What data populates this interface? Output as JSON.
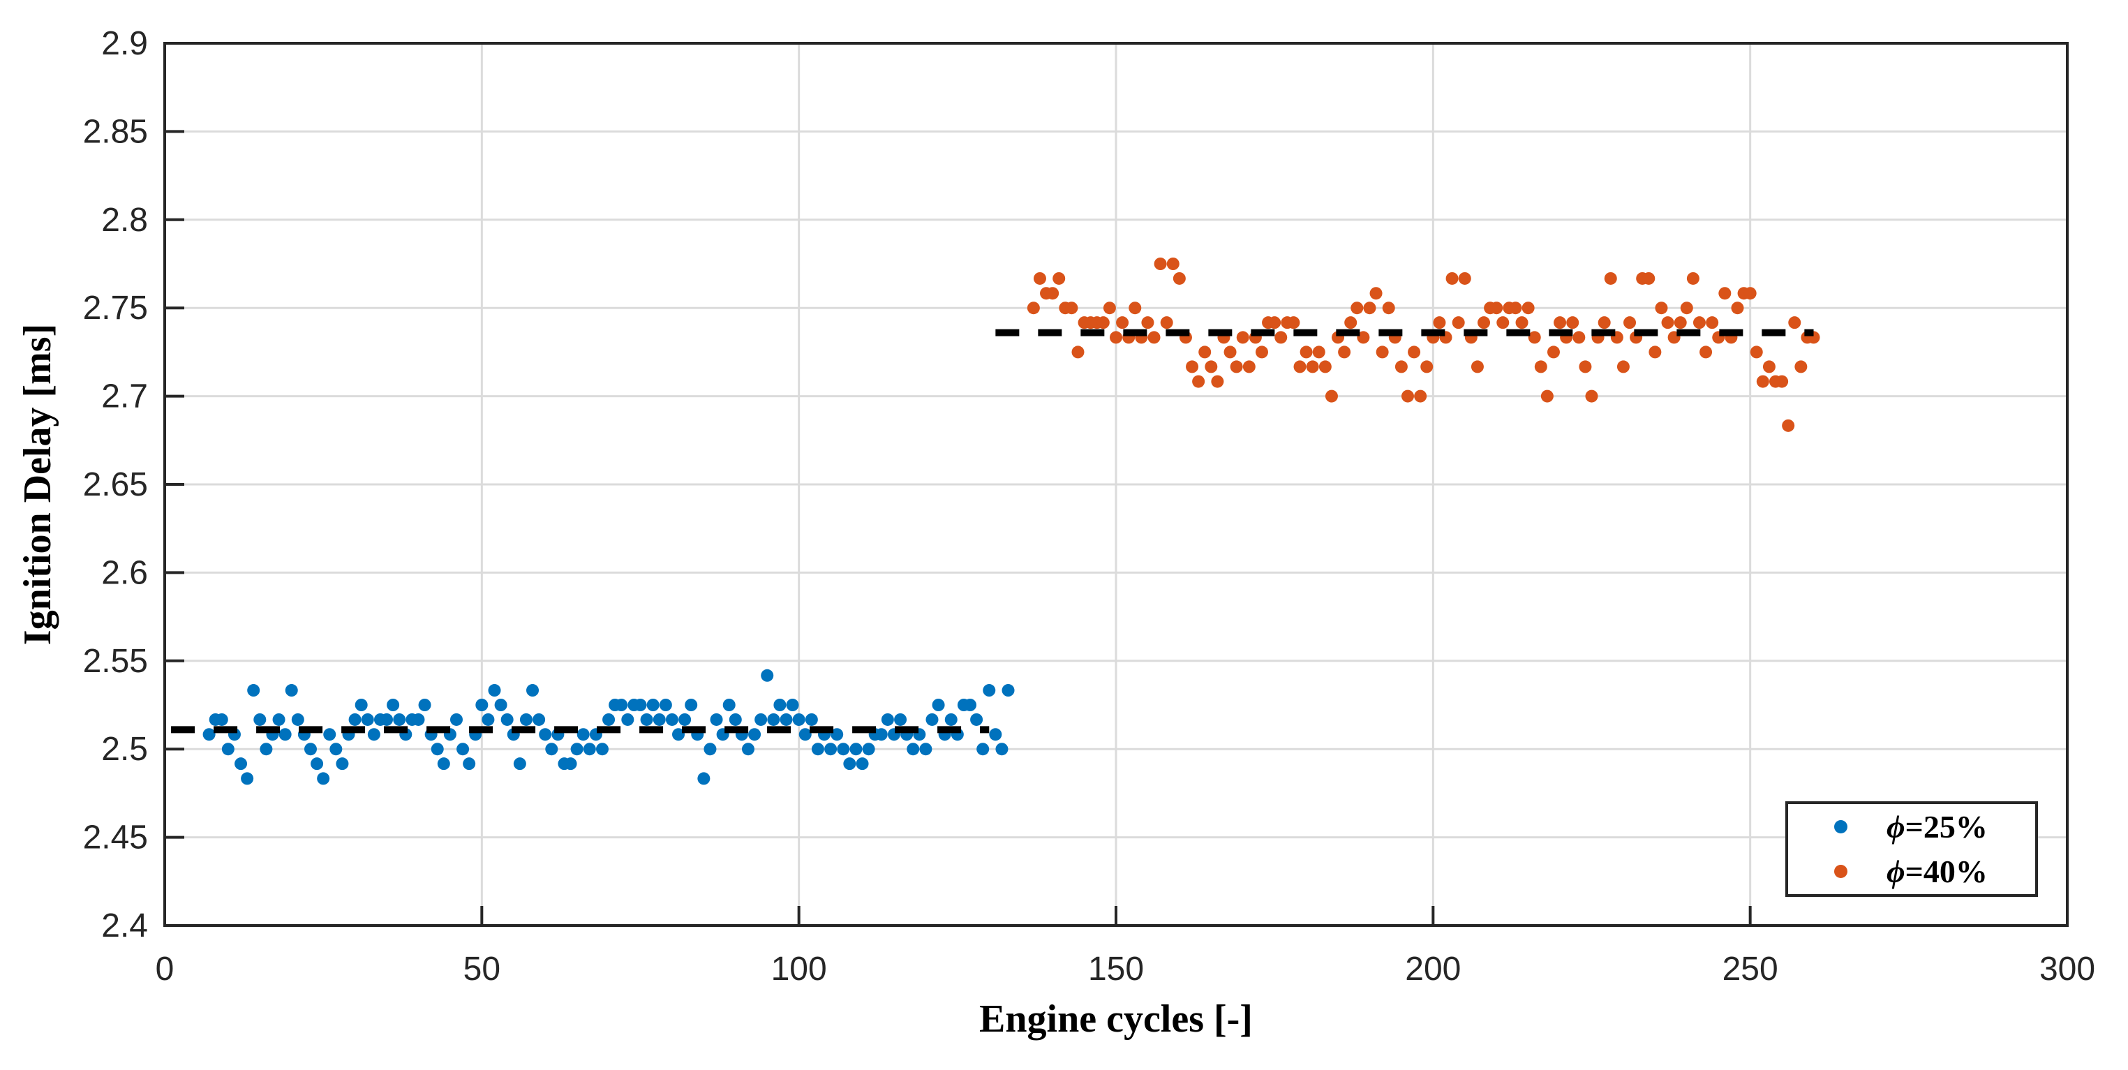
{
  "figure": {
    "background": "#FFFFFF",
    "axis_color": "#262626",
    "grid_color": "#DBDBDB",
    "mean_line_color": "#000000"
  },
  "chart_data": {
    "type": "scatter",
    "title": "",
    "xlabel": "Engine cycles [-]",
    "ylabel": "Ignition Delay [ms]",
    "xlim": [
      0,
      300
    ],
    "ylim": [
      2.4,
      2.9
    ],
    "grid": true,
    "x_ticks": [
      0,
      50,
      100,
      150,
      200,
      250,
      300
    ],
    "x_tick_labels": [
      "0",
      "50",
      "100",
      "150",
      "200",
      "250",
      "300"
    ],
    "y_ticks": [
      2.4,
      2.45,
      2.5,
      2.55,
      2.6,
      2.65,
      2.7,
      2.75,
      2.8,
      2.85,
      2.9
    ],
    "y_tick_labels": [
      "2.4",
      "2.45",
      "2.5",
      "2.55",
      "2.6",
      "2.65",
      "2.7",
      "2.75",
      "2.8",
      "2.85",
      "2.9"
    ],
    "legend": {
      "position": "south-east",
      "entries": [
        {
          "label": "ϕ=25%",
          "symbol": "ϕ",
          "suffix": "=25%",
          "color": "#0072BD"
        },
        {
          "label": "ϕ=40%",
          "symbol": "ϕ",
          "suffix": "=40%",
          "color": "#D95319"
        }
      ]
    },
    "mean_lines": [
      {
        "series": "phi-25",
        "value": 2.511,
        "x_start": 1,
        "x_end": 130,
        "style": "dashed",
        "color": "#000000"
      },
      {
        "series": "phi-40",
        "value": 2.736,
        "x_start": 131,
        "x_end": 260,
        "style": "dashed",
        "color": "#000000"
      }
    ],
    "series": [
      {
        "name": "phi-25",
        "color": "#0072BD",
        "marker": "circle",
        "points": [
          [
            7,
            2.5083
          ],
          [
            8,
            2.5167
          ],
          [
            9,
            2.5167
          ],
          [
            10,
            2.5
          ],
          [
            11,
            2.5083
          ],
          [
            12,
            2.4917
          ],
          [
            13,
            2.4833
          ],
          [
            14,
            2.5333
          ],
          [
            15,
            2.5167
          ],
          [
            16,
            2.5
          ],
          [
            17,
            2.5083
          ],
          [
            18,
            2.5167
          ],
          [
            19,
            2.5083
          ],
          [
            20,
            2.5333
          ],
          [
            21,
            2.5167
          ],
          [
            22,
            2.5083
          ],
          [
            23,
            2.5
          ],
          [
            24,
            2.4917
          ],
          [
            25,
            2.4833
          ],
          [
            26,
            2.5083
          ],
          [
            27,
            2.5
          ],
          [
            28,
            2.4917
          ],
          [
            29,
            2.5083
          ],
          [
            30,
            2.5167
          ],
          [
            31,
            2.525
          ],
          [
            32,
            2.5167
          ],
          [
            33,
            2.5083
          ],
          [
            34,
            2.5167
          ],
          [
            35,
            2.5167
          ],
          [
            36,
            2.525
          ],
          [
            37,
            2.5167
          ],
          [
            38,
            2.5083
          ],
          [
            39,
            2.5167
          ],
          [
            40,
            2.5167
          ],
          [
            41,
            2.525
          ],
          [
            42,
            2.5083
          ],
          [
            43,
            2.5
          ],
          [
            44,
            2.4917
          ],
          [
            45,
            2.5083
          ],
          [
            46,
            2.5167
          ],
          [
            47,
            2.5
          ],
          [
            48,
            2.4917
          ],
          [
            49,
            2.5083
          ],
          [
            50,
            2.525
          ],
          [
            51,
            2.5167
          ],
          [
            52,
            2.5333
          ],
          [
            53,
            2.525
          ],
          [
            54,
            2.5167
          ],
          [
            55,
            2.5083
          ],
          [
            56,
            2.4917
          ],
          [
            57,
            2.5167
          ],
          [
            58,
            2.5333
          ],
          [
            59,
            2.5167
          ],
          [
            60,
            2.5083
          ],
          [
            61,
            2.5
          ],
          [
            62,
            2.5083
          ],
          [
            63,
            2.4917
          ],
          [
            64,
            2.4917
          ],
          [
            65,
            2.5
          ],
          [
            66,
            2.5083
          ],
          [
            67,
            2.5
          ],
          [
            68,
            2.5083
          ],
          [
            69,
            2.5
          ],
          [
            70,
            2.5167
          ],
          [
            71,
            2.525
          ],
          [
            72,
            2.525
          ],
          [
            73,
            2.5167
          ],
          [
            74,
            2.525
          ],
          [
            75,
            2.525
          ],
          [
            76,
            2.5167
          ],
          [
            77,
            2.525
          ],
          [
            78,
            2.5167
          ],
          [
            79,
            2.525
          ],
          [
            80,
            2.5167
          ],
          [
            81,
            2.5083
          ],
          [
            82,
            2.5167
          ],
          [
            83,
            2.525
          ],
          [
            84,
            2.5083
          ],
          [
            85,
            2.4833
          ],
          [
            86,
            2.5
          ],
          [
            87,
            2.5167
          ],
          [
            88,
            2.5083
          ],
          [
            89,
            2.525
          ],
          [
            90,
            2.5167
          ],
          [
            91,
            2.5083
          ],
          [
            92,
            2.5
          ],
          [
            93,
            2.5083
          ],
          [
            94,
            2.5167
          ],
          [
            95,
            2.5417
          ],
          [
            96,
            2.5167
          ],
          [
            97,
            2.525
          ],
          [
            98,
            2.5167
          ],
          [
            99,
            2.525
          ],
          [
            100,
            2.5167
          ],
          [
            101,
            2.5083
          ],
          [
            102,
            2.5167
          ],
          [
            103,
            2.5
          ],
          [
            104,
            2.5083
          ],
          [
            105,
            2.5
          ],
          [
            106,
            2.5083
          ],
          [
            107,
            2.5
          ],
          [
            108,
            2.4917
          ],
          [
            109,
            2.5
          ],
          [
            110,
            2.4917
          ],
          [
            111,
            2.5
          ],
          [
            112,
            2.5083
          ],
          [
            113,
            2.5083
          ],
          [
            114,
            2.5167
          ],
          [
            115,
            2.5083
          ],
          [
            116,
            2.5167
          ],
          [
            117,
            2.5083
          ],
          [
            118,
            2.5
          ],
          [
            119,
            2.5083
          ],
          [
            120,
            2.5
          ],
          [
            121,
            2.5167
          ],
          [
            122,
            2.525
          ],
          [
            123,
            2.5083
          ],
          [
            124,
            2.5167
          ],
          [
            125,
            2.5083
          ],
          [
            126,
            2.525
          ],
          [
            127,
            2.525
          ],
          [
            128,
            2.5167
          ],
          [
            129,
            2.5
          ],
          [
            130,
            2.5333
          ],
          [
            131,
            2.5083
          ],
          [
            132,
            2.5
          ],
          [
            133,
            2.5333
          ]
        ]
      },
      {
        "name": "phi-40",
        "color": "#D95319",
        "marker": "circle",
        "points": [
          [
            137,
            2.75
          ],
          [
            138,
            2.7667
          ],
          [
            139,
            2.7583
          ],
          [
            140,
            2.7583
          ],
          [
            141,
            2.7667
          ],
          [
            142,
            2.75
          ],
          [
            143,
            2.75
          ],
          [
            144,
            2.725
          ],
          [
            145,
            2.7417
          ],
          [
            146,
            2.7417
          ],
          [
            147,
            2.7417
          ],
          [
            148,
            2.7417
          ],
          [
            149,
            2.75
          ],
          [
            150,
            2.7333
          ],
          [
            151,
            2.7417
          ],
          [
            152,
            2.7333
          ],
          [
            153,
            2.75
          ],
          [
            154,
            2.7333
          ],
          [
            155,
            2.7417
          ],
          [
            156,
            2.7333
          ],
          [
            157,
            2.775
          ],
          [
            158,
            2.7417
          ],
          [
            159,
            2.775
          ],
          [
            160,
            2.7667
          ],
          [
            161,
            2.7333
          ],
          [
            162,
            2.7167
          ],
          [
            163,
            2.7083
          ],
          [
            164,
            2.725
          ],
          [
            165,
            2.7167
          ],
          [
            166,
            2.7083
          ],
          [
            167,
            2.7333
          ],
          [
            168,
            2.725
          ],
          [
            169,
            2.7167
          ],
          [
            170,
            2.7333
          ],
          [
            171,
            2.7167
          ],
          [
            172,
            2.7333
          ],
          [
            173,
            2.725
          ],
          [
            174,
            2.7417
          ],
          [
            175,
            2.7417
          ],
          [
            176,
            2.7333
          ],
          [
            177,
            2.7417
          ],
          [
            178,
            2.7417
          ],
          [
            179,
            2.7167
          ],
          [
            180,
            2.725
          ],
          [
            181,
            2.7167
          ],
          [
            182,
            2.725
          ],
          [
            183,
            2.7167
          ],
          [
            184,
            2.7
          ],
          [
            185,
            2.7333
          ],
          [
            186,
            2.725
          ],
          [
            187,
            2.7417
          ],
          [
            188,
            2.75
          ],
          [
            189,
            2.7333
          ],
          [
            190,
            2.75
          ],
          [
            191,
            2.7583
          ],
          [
            192,
            2.725
          ],
          [
            193,
            2.75
          ],
          [
            194,
            2.7333
          ],
          [
            195,
            2.7167
          ],
          [
            196,
            2.7
          ],
          [
            197,
            2.725
          ],
          [
            198,
            2.7
          ],
          [
            199,
            2.7167
          ],
          [
            200,
            2.7333
          ],
          [
            201,
            2.7417
          ],
          [
            202,
            2.7333
          ],
          [
            203,
            2.7667
          ],
          [
            204,
            2.7417
          ],
          [
            205,
            2.7667
          ],
          [
            206,
            2.7333
          ],
          [
            207,
            2.7167
          ],
          [
            208,
            2.7417
          ],
          [
            209,
            2.75
          ],
          [
            210,
            2.75
          ],
          [
            211,
            2.7417
          ],
          [
            212,
            2.75
          ],
          [
            213,
            2.75
          ],
          [
            214,
            2.7417
          ],
          [
            215,
            2.75
          ],
          [
            216,
            2.7333
          ],
          [
            217,
            2.7167
          ],
          [
            218,
            2.7
          ],
          [
            219,
            2.725
          ],
          [
            220,
            2.7417
          ],
          [
            221,
            2.7333
          ],
          [
            222,
            2.7417
          ],
          [
            223,
            2.7333
          ],
          [
            224,
            2.7167
          ],
          [
            225,
            2.7
          ],
          [
            226,
            2.7333
          ],
          [
            227,
            2.7417
          ],
          [
            228,
            2.7667
          ],
          [
            229,
            2.7333
          ],
          [
            230,
            2.7167
          ],
          [
            231,
            2.7417
          ],
          [
            232,
            2.7333
          ],
          [
            233,
            2.7667
          ],
          [
            234,
            2.7667
          ],
          [
            235,
            2.725
          ],
          [
            236,
            2.75
          ],
          [
            237,
            2.7417
          ],
          [
            238,
            2.7333
          ],
          [
            239,
            2.7417
          ],
          [
            240,
            2.75
          ],
          [
            241,
            2.7667
          ],
          [
            242,
            2.7417
          ],
          [
            243,
            2.725
          ],
          [
            244,
            2.7417
          ],
          [
            245,
            2.7333
          ],
          [
            246,
            2.7583
          ],
          [
            247,
            2.7333
          ],
          [
            248,
            2.75
          ],
          [
            249,
            2.7583
          ],
          [
            250,
            2.7583
          ],
          [
            251,
            2.725
          ],
          [
            252,
            2.7083
          ],
          [
            253,
            2.7167
          ],
          [
            254,
            2.7083
          ],
          [
            255,
            2.7083
          ],
          [
            256,
            2.6833
          ],
          [
            257,
            2.7417
          ],
          [
            258,
            2.7167
          ],
          [
            259,
            2.7333
          ],
          [
            260,
            2.7333
          ]
        ]
      }
    ]
  }
}
